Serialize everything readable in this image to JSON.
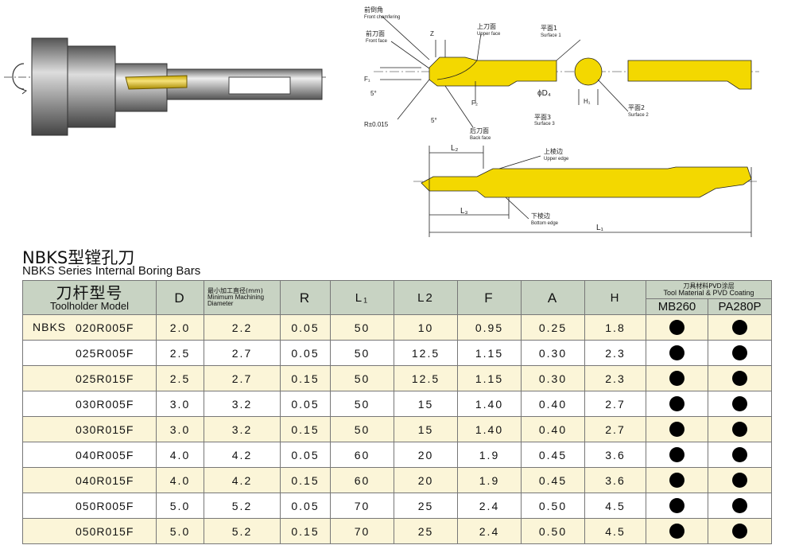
{
  "diagram": {
    "labels": [
      "前倒角",
      "Front chamfering",
      "前刀面",
      "Front face",
      "Z",
      "上刀面",
      "Upper face",
      "平面1",
      "Surface 1",
      "F₁",
      "5°",
      "F₂",
      "ϕD₄",
      "H₁",
      "平面2",
      "Surface 2",
      "平面3",
      "Surface 3",
      "R±0.015",
      "5°",
      "后刀面",
      "Back face",
      "L₂",
      "上棱边",
      "Upper edge",
      "L₃",
      "下棱边",
      "Bottom edge",
      "L₁"
    ]
  },
  "header": {
    "title": "NBKS型镗孔刀",
    "subtitle": "NBKS Series Internal Boring Bars"
  },
  "table": {
    "columns": {
      "model_cn": "刀杆型号",
      "model_en": "Toolholder Model",
      "d": "D",
      "min_cn": "最小加工直径(mm)",
      "min_en1": "Minimum Machining",
      "min_en2": "Diameter",
      "r": "R",
      "l1": "L₁",
      "l2": "L2",
      "f": "F",
      "a": "A",
      "h": "H",
      "coating_cn": "刀具材料PVD涂层",
      "coating_en": "Tool Material & PVD Coating",
      "mb": "MB260",
      "pa": "PA280P"
    },
    "rows": [
      {
        "prefix": "NBKS",
        "model": "020R005F",
        "cells": [
          "2.0",
          "2.2",
          "0.05",
          "50",
          "10",
          "0.95",
          "0.25",
          "1.8"
        ]
      },
      {
        "model": "025R005F",
        "cells": [
          "2.5",
          "2.7",
          "0.05",
          "50",
          "12.5",
          "1.15",
          "0.30",
          "2.3"
        ]
      },
      {
        "model": "025R015F",
        "cells": [
          "2.5",
          "2.7",
          "0.15",
          "50",
          "12.5",
          "1.15",
          "0.30",
          "2.3"
        ]
      },
      {
        "model": "030R005F",
        "cells": [
          "3.0",
          "3.2",
          "0.05",
          "50",
          "15",
          "1.40",
          "0.40",
          "2.7"
        ]
      },
      {
        "model": "030R015F",
        "cells": [
          "3.0",
          "3.2",
          "0.15",
          "50",
          "15",
          "1.40",
          "0.40",
          "2.7"
        ]
      },
      {
        "model": "040R005F",
        "cells": [
          "4.0",
          "4.2",
          "0.05",
          "60",
          "20",
          "1.9",
          "0.45",
          "3.6"
        ]
      },
      {
        "model": "040R015F",
        "cells": [
          "4.0",
          "4.2",
          "0.15",
          "60",
          "20",
          "1.9",
          "0.45",
          "3.6"
        ]
      },
      {
        "model": "050R005F",
        "cells": [
          "5.0",
          "5.2",
          "0.05",
          "70",
          "25",
          "2.4",
          "0.50",
          "4.5"
        ]
      },
      {
        "model": "050R015F",
        "cells": [
          "5.0",
          "5.2",
          "0.15",
          "70",
          "25",
          "2.4",
          "0.50",
          "4.5"
        ]
      }
    ]
  }
}
